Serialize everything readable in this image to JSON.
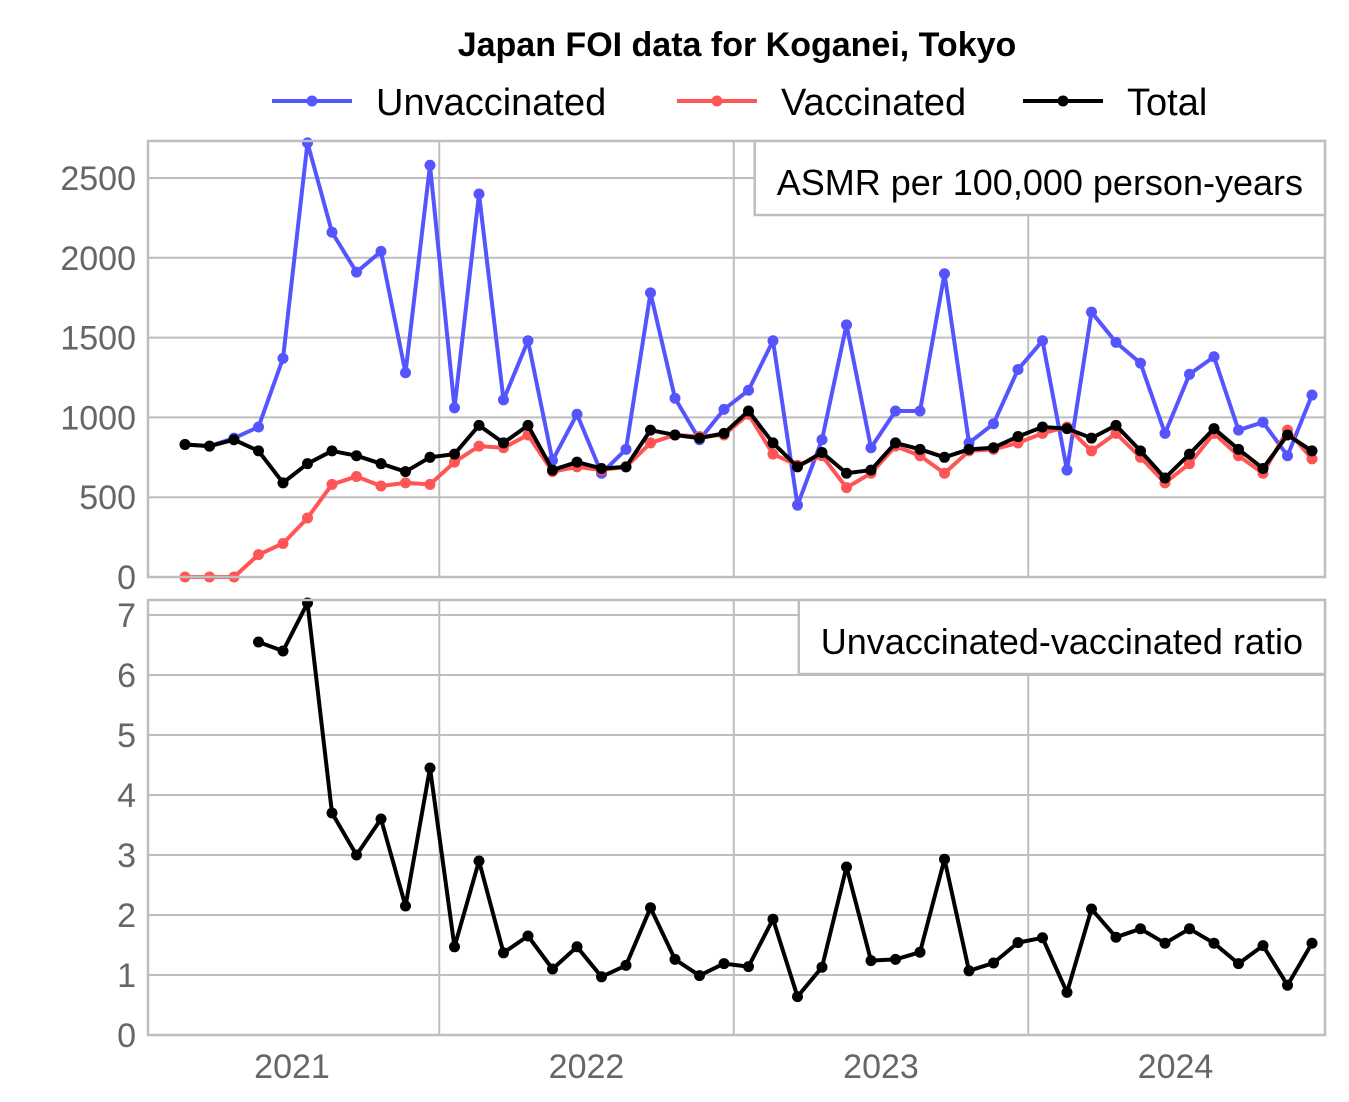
{
  "chart_data": {
    "type": "line",
    "title": "Japan FOI data for Koganei, Tokyo",
    "start_month": "2020-08",
    "n_months": 47,
    "x_ticks": [
      "2021",
      "2022",
      "2023",
      "2024"
    ],
    "colors": {
      "Unvaccinated": "#5555ff",
      "Vaccinated": "#ff5555",
      "Total": "#000000"
    },
    "panels": [
      {
        "label": "ASMR per 100,000 person-years",
        "ylim": [
          0,
          2720
        ],
        "y_ticks": [
          0,
          500,
          1000,
          1500,
          2000,
          2500
        ],
        "series": [
          {
            "name": "Unvaccinated",
            "values": [
              830,
              820,
              870,
              940,
              1370,
              2720,
              2160,
              1910,
              2040,
              1280,
              2580,
              1060,
              2400,
              1110,
              1480,
              730,
              1020,
              650,
              800,
              1780,
              1120,
              860,
              1050,
              1170,
              1480,
              450,
              860,
              1580,
              810,
              1040,
              1040,
              1900,
              840,
              960,
              1300,
              1480,
              670,
              1660,
              1470,
              1340,
              900,
              1270,
              1380,
              920,
              970,
              760,
              1140
            ]
          },
          {
            "name": "Vaccinated",
            "values": [
              0,
              0,
              0,
              140,
              210,
              370,
              580,
              630,
              570,
              590,
              580,
              720,
              820,
              810,
              890,
              660,
              690,
              670,
              690,
              840,
              890,
              880,
              890,
              1020,
              770,
              700,
              760,
              560,
              650,
              820,
              760,
              650,
              790,
              800,
              840,
              900,
              940,
              790,
              900,
              750,
              590,
              710,
              900,
              760,
              650,
              920,
              740
            ]
          },
          {
            "name": "Total",
            "values": [
              830,
              820,
              860,
              790,
              590,
              710,
              790,
              760,
              710,
              660,
              750,
              770,
              950,
              840,
              950,
              670,
              720,
              680,
              690,
              920,
              890,
              870,
              900,
              1040,
              840,
              690,
              780,
              650,
              670,
              840,
              800,
              750,
              800,
              810,
              880,
              940,
              930,
              870,
              950,
              790,
              620,
              770,
              930,
              800,
              680,
              890,
              790
            ]
          }
        ]
      },
      {
        "label": "Unvaccinated-vaccinated ratio",
        "ylim": [
          0,
          7.25
        ],
        "y_ticks": [
          0,
          1,
          2,
          3,
          4,
          5,
          6,
          7
        ],
        "series": [
          {
            "name": "Ratio",
            "values": [
              null,
              null,
              null,
              6.55,
              6.4,
              7.2,
              3.7,
              3.0,
              3.6,
              2.15,
              4.45,
              1.47,
              2.9,
              1.37,
              1.65,
              1.1,
              1.47,
              0.97,
              1.16,
              2.12,
              1.26,
              0.99,
              1.19,
              1.14,
              1.93,
              0.64,
              1.13,
              2.8,
              1.24,
              1.26,
              1.38,
              2.93,
              1.07,
              1.2,
              1.54,
              1.62,
              0.71,
              2.1,
              1.63,
              1.77,
              1.53,
              1.77,
              1.53,
              1.19,
              1.49,
              0.83,
              1.53
            ]
          }
        ]
      }
    ],
    "legend": [
      "Unvaccinated",
      "Vaccinated",
      "Total"
    ],
    "legend_position": "top"
  }
}
